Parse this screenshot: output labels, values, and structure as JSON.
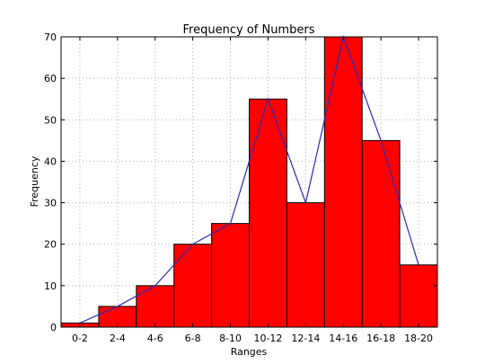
{
  "chart_data": {
    "type": "bar",
    "title": "Frequency of Numbers",
    "xlabel": "Ranges",
    "ylabel": "Frequency",
    "categories": [
      "0-2",
      "2-4",
      "4-6",
      "6-8",
      "8-10",
      "10-12",
      "12-14",
      "14-16",
      "16-18",
      "18-20"
    ],
    "values": [
      1,
      5,
      10,
      20,
      25,
      55,
      30,
      70,
      45,
      15
    ],
    "line_overlay": {
      "x": [
        1,
        3,
        5,
        7,
        9,
        11,
        13,
        15,
        17,
        19
      ],
      "y": [
        1,
        5,
        10,
        20,
        25,
        55,
        30,
        70,
        45,
        15
      ]
    },
    "ylim": [
      0,
      70
    ],
    "xlim": [
      0,
      20
    ],
    "yticks": [
      0,
      10,
      20,
      30,
      40,
      50,
      60,
      70
    ],
    "grid": true,
    "colors": {
      "bar_fill": "#ff0000",
      "bar_edge": "#000000",
      "line": "#2b2bb0",
      "grid": "#b0b0b0"
    }
  }
}
